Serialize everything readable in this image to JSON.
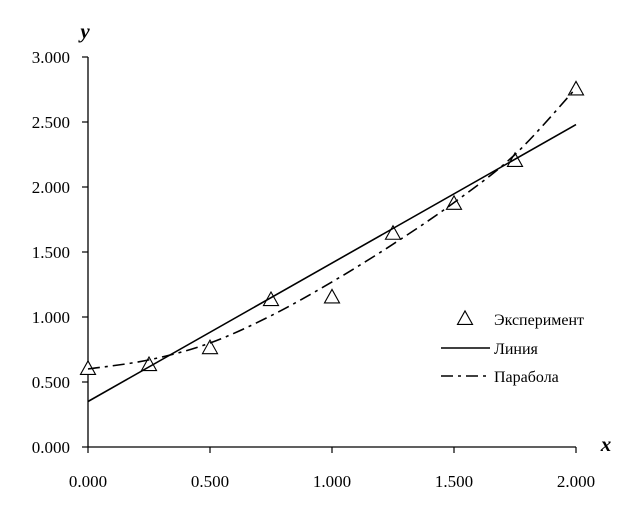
{
  "chart_data": {
    "type": "scatter",
    "title": "",
    "xlabel": "x",
    "ylabel": "y",
    "xlim": [
      0,
      2
    ],
    "ylim": [
      0,
      3
    ],
    "x_ticks": [
      "0.000",
      "0.500",
      "1.000",
      "1.500",
      "2.000"
    ],
    "y_ticks": [
      "0.000",
      "0.500",
      "1.000",
      "1.500",
      "2.000",
      "2.500",
      "3.000"
    ],
    "grid": false,
    "legend_position": "right",
    "series": [
      {
        "name": "Эксперимент",
        "style": "triangle-markers",
        "x": [
          0,
          0.25,
          0.5,
          0.75,
          1.0,
          1.25,
          1.5,
          1.75,
          2.0
        ],
        "y": [
          0.6,
          0.63,
          0.76,
          1.13,
          1.15,
          1.64,
          1.87,
          2.2,
          2.75
        ]
      },
      {
        "name": "Линия",
        "style": "solid-line",
        "x": [
          0,
          2.0
        ],
        "y": [
          0.35,
          2.48
        ]
      },
      {
        "name": "Парабола",
        "style": "dash-dot-line",
        "x": [
          0,
          0.25,
          0.5,
          0.75,
          1.0,
          1.25,
          1.5,
          1.75,
          2.0
        ],
        "y": [
          0.6,
          0.67,
          0.8,
          1.01,
          1.27,
          1.56,
          1.88,
          2.25,
          2.76
        ]
      }
    ]
  }
}
